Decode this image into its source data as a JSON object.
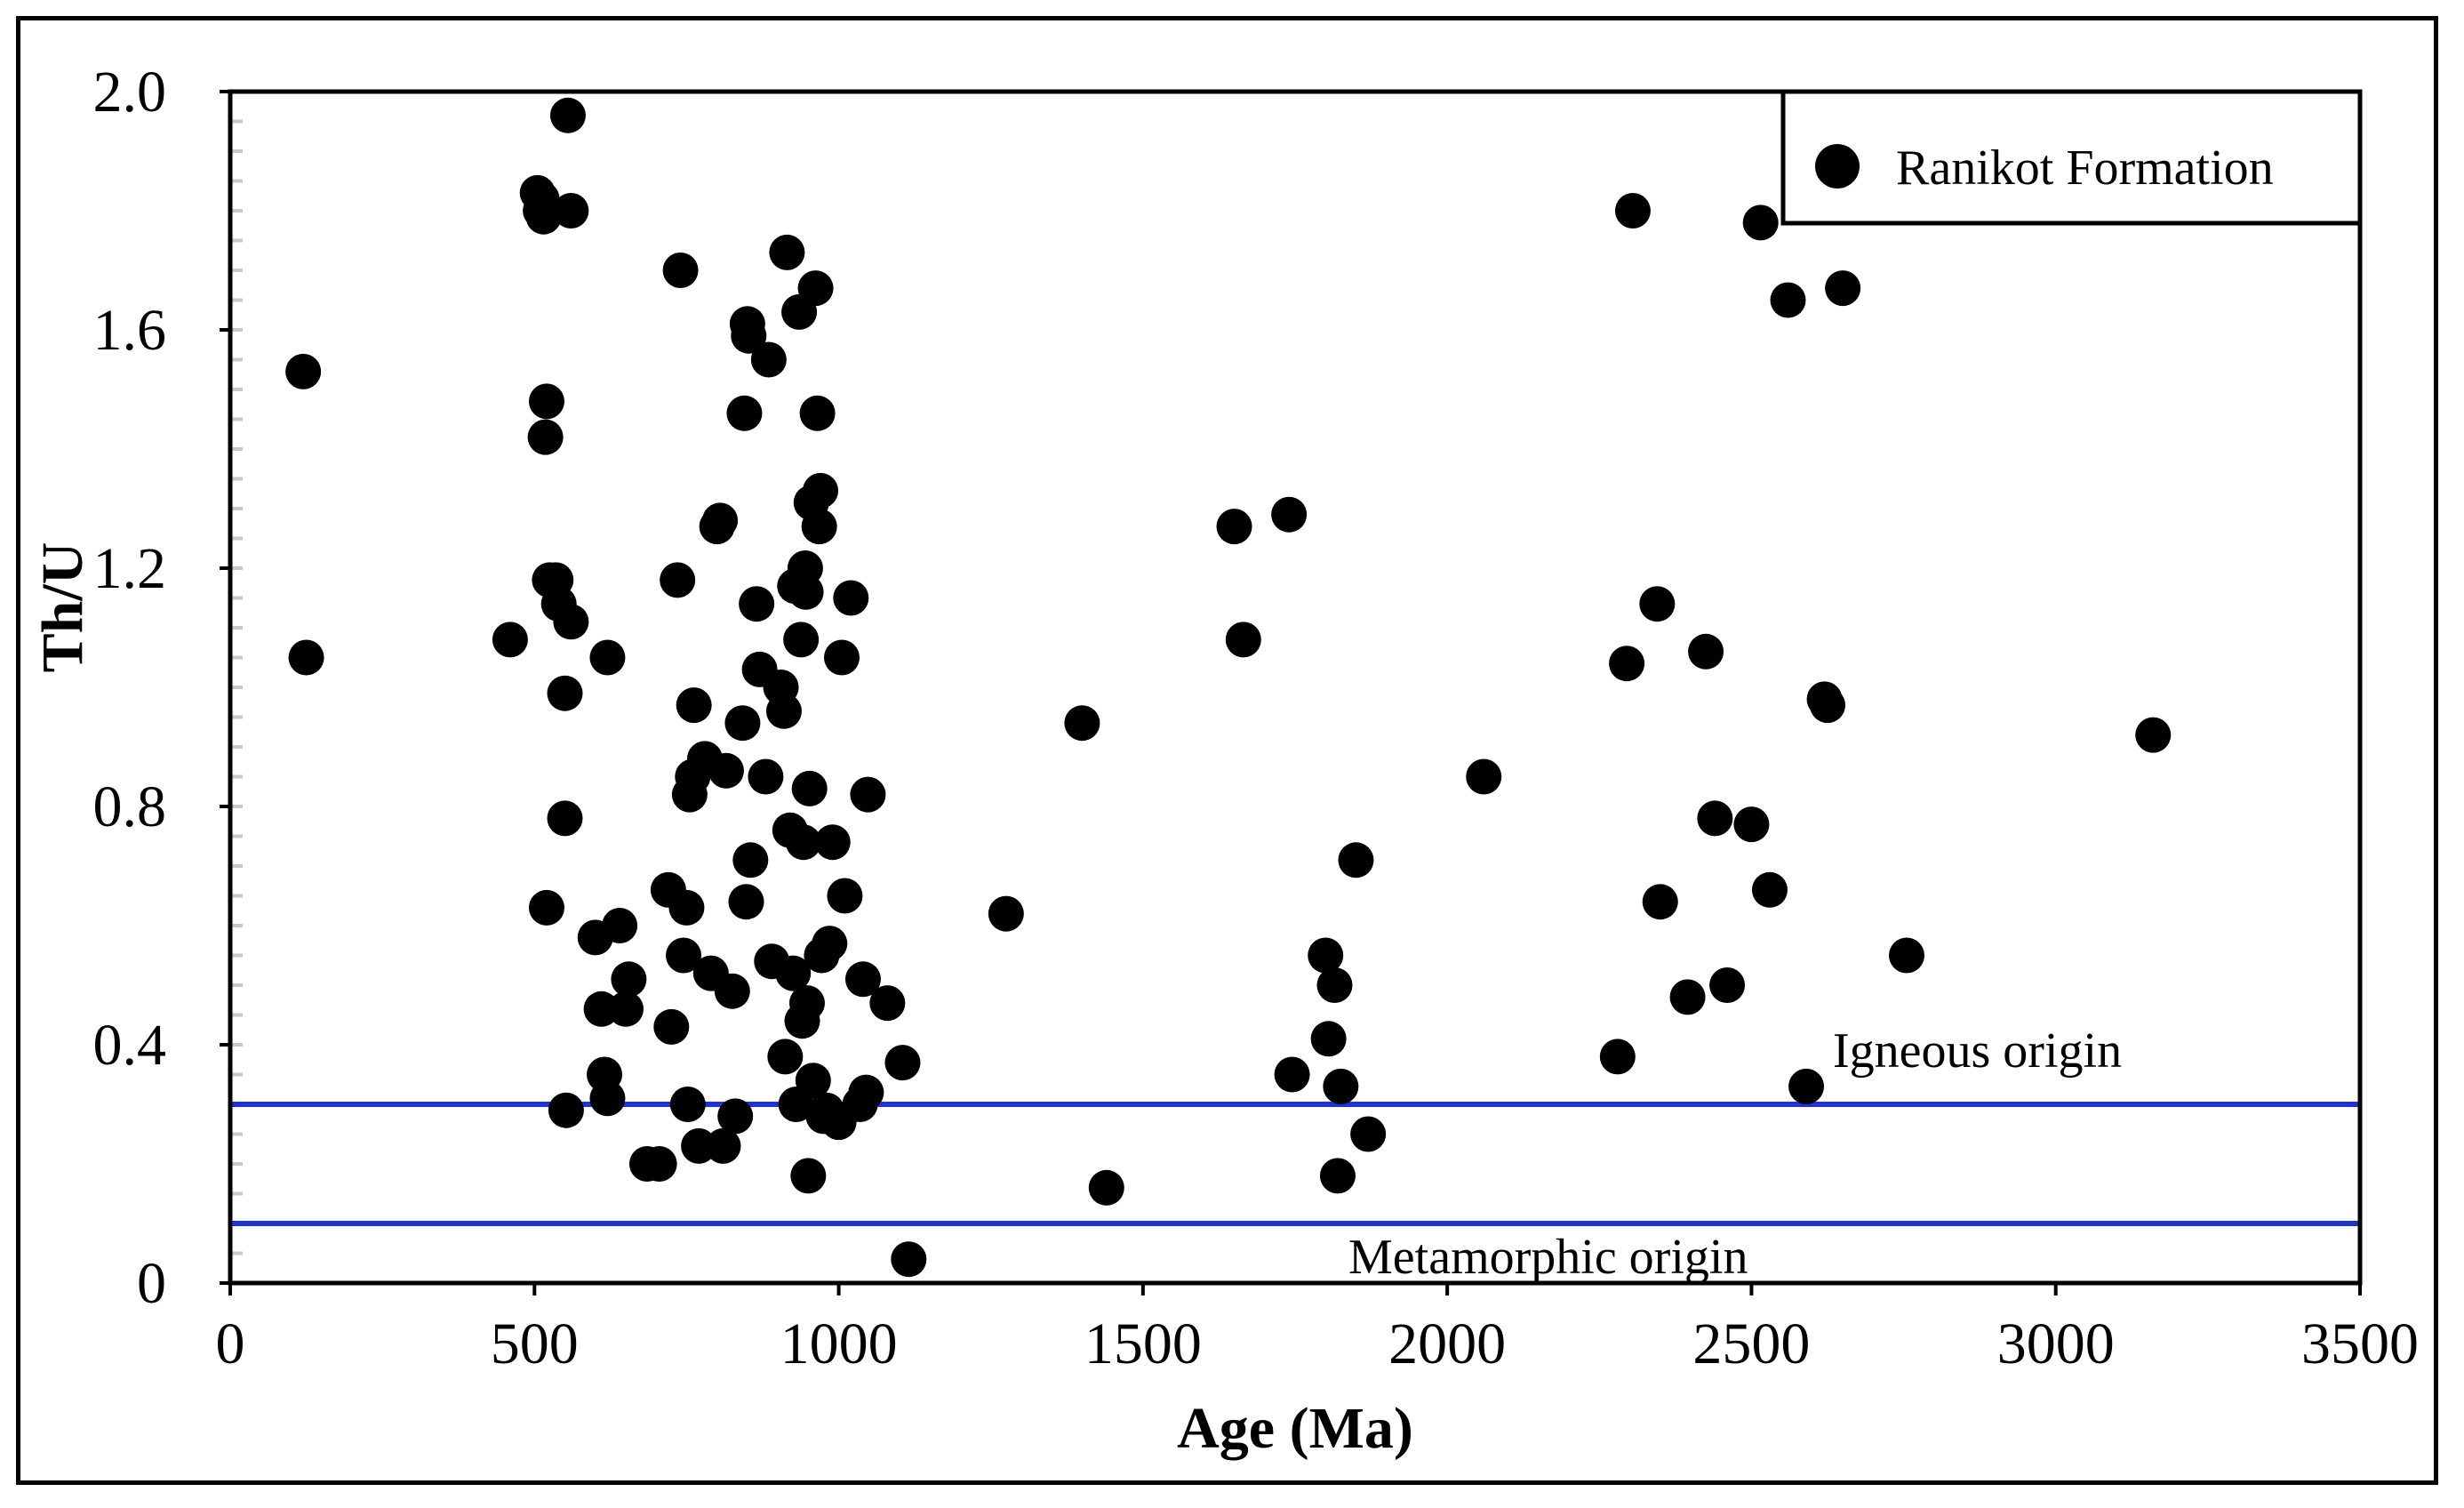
{
  "chart_data": {
    "type": "scatter",
    "title": "",
    "xlabel": "Age (Ma)",
    "ylabel": "Th/U",
    "xlim": [
      0,
      3500
    ],
    "ylim": [
      0,
      2.0
    ],
    "xticks": [
      0,
      500,
      1000,
      1500,
      2000,
      2500,
      3000,
      3500
    ],
    "xtick_labels": [
      "0",
      "500",
      "1000",
      "1500",
      "2000",
      "2500",
      "3000",
      "3500"
    ],
    "yticks": [
      0,
      0.4,
      0.8,
      1.2,
      1.6,
      2.0
    ],
    "ytick_labels": [
      "0",
      "0.4",
      "0.8",
      "1.2",
      "1.6",
      "2.0"
    ],
    "grid": false,
    "legend": {
      "position": "top-right",
      "entries": [
        "Ranikot Formation"
      ]
    },
    "reference_lines": [
      {
        "y": 0.3,
        "color": "#2233cc",
        "label": "Igneous origin"
      },
      {
        "y": 0.1,
        "color": "#2233cc",
        "label": "Metamorphic origin"
      }
    ],
    "series": [
      {
        "name": "Ranikot Formation",
        "color": "#000000",
        "points": [
          [
            120,
            1.53
          ],
          [
            125,
            1.05
          ],
          [
            460,
            1.08
          ],
          [
            505,
            1.83
          ],
          [
            510,
            1.8
          ],
          [
            512,
            1.82
          ],
          [
            515,
            1.79
          ],
          [
            520,
            1.48
          ],
          [
            518,
            1.42
          ],
          [
            520,
            0.63
          ],
          [
            525,
            1.18
          ],
          [
            535,
            1.18
          ],
          [
            540,
            1.14
          ],
          [
            550,
            0.99
          ],
          [
            550,
            0.78
          ],
          [
            552,
            0.29
          ],
          [
            555,
            1.96
          ],
          [
            560,
            1.8
          ],
          [
            560,
            1.11
          ],
          [
            600,
            0.58
          ],
          [
            610,
            0.46
          ],
          [
            615,
            0.35
          ],
          [
            620,
            0.31
          ],
          [
            620,
            1.05
          ],
          [
            640,
            0.6
          ],
          [
            650,
            0.46
          ],
          [
            655,
            0.51
          ],
          [
            685,
            0.2
          ],
          [
            705,
            0.2
          ],
          [
            720,
            0.66
          ],
          [
            725,
            0.43
          ],
          [
            735,
            1.18
          ],
          [
            740,
            1.7
          ],
          [
            745,
            0.55
          ],
          [
            750,
            0.63
          ],
          [
            752,
            0.3
          ],
          [
            755,
            0.82
          ],
          [
            760,
            0.85
          ],
          [
            762,
            0.97
          ],
          [
            770,
            0.23
          ],
          [
            780,
            0.88
          ],
          [
            790,
            0.52
          ],
          [
            800,
            1.27
          ],
          [
            805,
            1.28
          ],
          [
            810,
            0.23
          ],
          [
            815,
            0.86
          ],
          [
            825,
            0.49
          ],
          [
            830,
            0.28
          ],
          [
            842,
            0.94
          ],
          [
            845,
            1.46
          ],
          [
            848,
            0.64
          ],
          [
            850,
            1.61
          ],
          [
            852,
            1.59
          ],
          [
            855,
            0.71
          ],
          [
            865,
            1.14
          ],
          [
            870,
            1.03
          ],
          [
            880,
            0.85
          ],
          [
            885,
            1.55
          ],
          [
            890,
            0.54
          ],
          [
            905,
            1.0
          ],
          [
            910,
            0.96
          ],
          [
            912,
            0.38
          ],
          [
            915,
            1.73
          ],
          [
            920,
            0.76
          ],
          [
            925,
            0.52
          ],
          [
            928,
            1.17
          ],
          [
            930,
            0.3
          ],
          [
            935,
            1.63
          ],
          [
            938,
            1.08
          ],
          [
            940,
            0.44
          ],
          [
            942,
            0.74
          ],
          [
            945,
            1.2
          ],
          [
            946,
            1.16
          ],
          [
            948,
            0.47
          ],
          [
            950,
            0.18
          ],
          [
            952,
            0.83
          ],
          [
            955,
            1.31
          ],
          [
            958,
            0.34
          ],
          [
            962,
            1.67
          ],
          [
            965,
            1.46
          ],
          [
            968,
            1.27
          ],
          [
            970,
            1.33
          ],
          [
            972,
            0.55
          ],
          [
            975,
            0.28
          ],
          [
            980,
            0.29
          ],
          [
            985,
            0.57
          ],
          [
            990,
            0.74
          ],
          [
            1000,
            0.27
          ],
          [
            1005,
            1.05
          ],
          [
            1010,
            0.65
          ],
          [
            1020,
            1.15
          ],
          [
            1035,
            0.3
          ],
          [
            1040,
            0.51
          ],
          [
            1045,
            0.32
          ],
          [
            1048,
            0.82
          ],
          [
            1080,
            0.47
          ],
          [
            1105,
            0.37
          ],
          [
            1115,
            0.04
          ],
          [
            1275,
            0.62
          ],
          [
            1400,
            0.94
          ],
          [
            1440,
            0.16
          ],
          [
            1650,
            1.27
          ],
          [
            1665,
            1.08
          ],
          [
            1740,
            1.29
          ],
          [
            1745,
            0.35
          ],
          [
            1800,
            0.55
          ],
          [
            1805,
            0.41
          ],
          [
            1815,
            0.5
          ],
          [
            1820,
            0.18
          ],
          [
            1825,
            0.33
          ],
          [
            1850,
            0.71
          ],
          [
            1870,
            0.25
          ],
          [
            2060,
            0.85
          ],
          [
            2280,
            0.38
          ],
          [
            2295,
            1.04
          ],
          [
            2305,
            1.8
          ],
          [
            2345,
            1.14
          ],
          [
            2350,
            0.64
          ],
          [
            2395,
            0.48
          ],
          [
            2425,
            1.06
          ],
          [
            2440,
            0.78
          ],
          [
            2460,
            0.5
          ],
          [
            2500,
            0.77
          ],
          [
            2515,
            1.78
          ],
          [
            2530,
            0.66
          ],
          [
            2560,
            1.65
          ],
          [
            2590,
            0.33
          ],
          [
            2620,
            0.98
          ],
          [
            2625,
            0.97
          ],
          [
            2650,
            1.67
          ],
          [
            2755,
            0.55
          ],
          [
            3160,
            0.92
          ]
        ]
      }
    ]
  }
}
